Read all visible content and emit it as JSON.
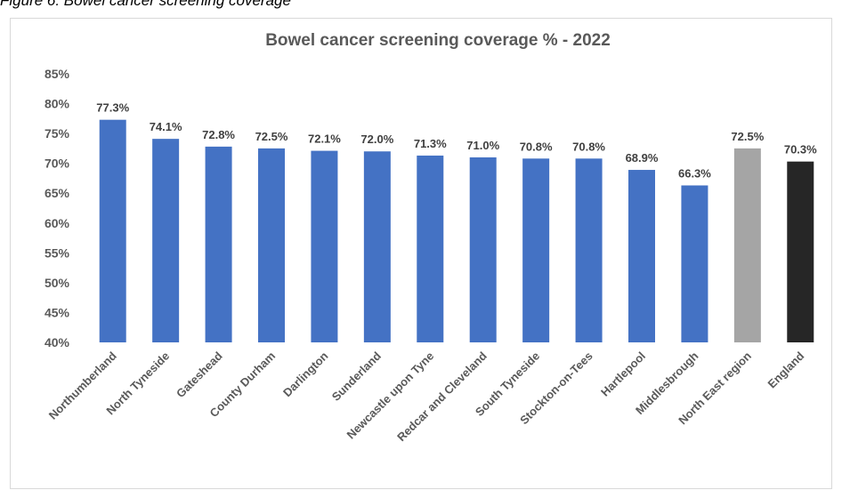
{
  "caption": "Figure 6: Bowel cancer screening coverage",
  "chart_data": {
    "type": "bar",
    "title": "Bowel cancer screening coverage % - 2022",
    "xlabel": "",
    "ylabel": "",
    "ylim": [
      40,
      85
    ],
    "yticks": [
      "40%",
      "45%",
      "50%",
      "55%",
      "60%",
      "65%",
      "70%",
      "75%",
      "80%",
      "85%"
    ],
    "grid": false,
    "legend": "none",
    "categories": [
      "Northumberland",
      "North Tyneside",
      "Gateshead",
      "County Durham",
      "Darlington",
      "Sunderland",
      "Newcastle upon Tyne",
      "Redcar and Cleveland",
      "South Tyneside",
      "Stockton-on-Tees",
      "Hartlepool",
      "Middlesbrough",
      "North East region",
      "England"
    ],
    "values": [
      77.3,
      74.1,
      72.8,
      72.5,
      72.1,
      72.0,
      71.3,
      71.0,
      70.8,
      70.8,
      68.9,
      66.3,
      72.5,
      70.3
    ],
    "data_labels": [
      "77.3%",
      "74.1%",
      "72.8%",
      "72.5%",
      "72.1%",
      "72.0%",
      "71.3%",
      "71.0%",
      "70.8%",
      "70.8%",
      "68.9%",
      "66.3%",
      "72.5%",
      "70.3%"
    ],
    "bar_colors": [
      "#4472c4",
      "#4472c4",
      "#4472c4",
      "#4472c4",
      "#4472c4",
      "#4472c4",
      "#4472c4",
      "#4472c4",
      "#4472c4",
      "#4472c4",
      "#4472c4",
      "#4472c4",
      "#a5a5a5",
      "#262626"
    ]
  }
}
